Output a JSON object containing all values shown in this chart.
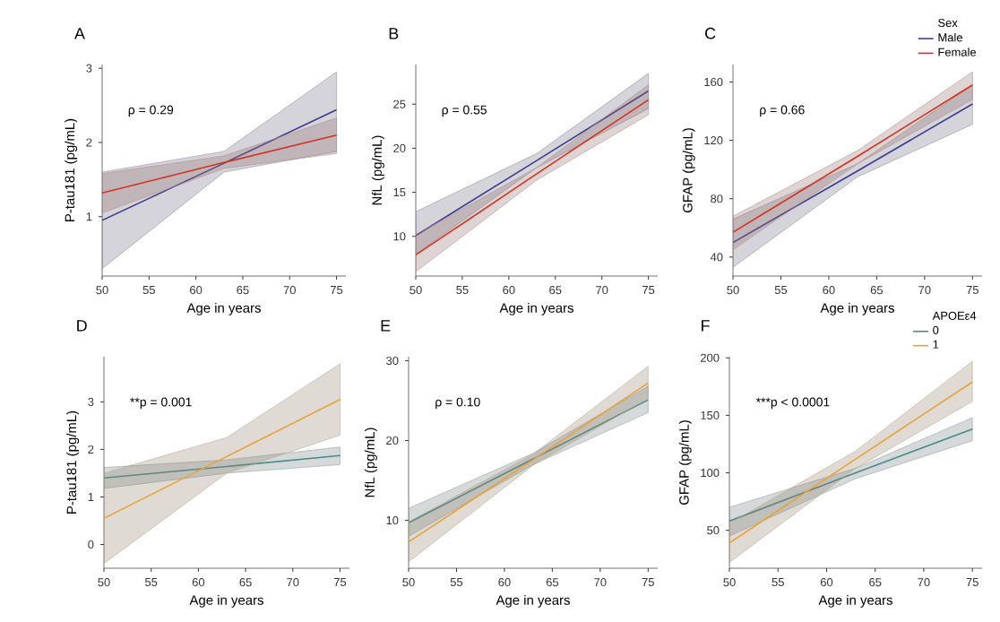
{
  "chart_data": [
    {
      "type": "line",
      "title": "A",
      "xlabel": "Age in years",
      "ylabel": "P-tau181 (pg/mL)",
      "x": [
        50,
        63,
        75
      ],
      "xlim": [
        50,
        76
      ],
      "xticks": [
        50,
        55,
        60,
        65,
        70,
        75
      ],
      "ylim": [
        0.2,
        3.05
      ],
      "yticks": [
        1,
        2,
        3
      ],
      "annotations": [
        "ρ = 0.29"
      ],
      "series": [
        {
          "color": "#3b3d8f",
          "values": [
            0.95,
            1.72,
            2.44
          ],
          "lower": [
            0.3,
            1.6,
            1.88
          ],
          "upper": [
            1.6,
            1.88,
            2.95
          ]
        },
        {
          "color": "#d7301f",
          "values": [
            1.32,
            1.73,
            2.1
          ],
          "lower": [
            1.05,
            1.65,
            1.85
          ],
          "upper": [
            1.58,
            1.82,
            2.33
          ]
        }
      ]
    },
    {
      "type": "line",
      "title": "B",
      "xlabel": "Age in years",
      "ylabel": "NfL (pg/mL)",
      "x": [
        50,
        63,
        75
      ],
      "xlim": [
        50,
        76
      ],
      "xticks": [
        50,
        55,
        60,
        65,
        70,
        75
      ],
      "ylim": [
        5.5,
        29.5
      ],
      "yticks": [
        10,
        15,
        20,
        25
      ],
      "annotations": [
        "ρ = 0.55"
      ],
      "series": [
        {
          "color": "#3b3d8f",
          "values": [
            10.1,
            18.6,
            26.5
          ],
          "lower": [
            8.0,
            17.8,
            24.5
          ],
          "upper": [
            12.8,
            19.4,
            28.5
          ]
        },
        {
          "color": "#d7301f",
          "values": [
            7.9,
            17.1,
            25.5
          ],
          "lower": [
            6.0,
            16.4,
            23.8
          ],
          "upper": [
            10.2,
            17.8,
            27.2
          ]
        }
      ]
    },
    {
      "type": "line",
      "title": "C",
      "xlabel": "Age in years",
      "ylabel": "GFAP (pg/mL)",
      "x": [
        50,
        63,
        75
      ],
      "xlim": [
        50,
        76
      ],
      "xticks": [
        50,
        55,
        60,
        65,
        70,
        75
      ],
      "ylim": [
        27,
        172
      ],
      "yticks": [
        40,
        80,
        120,
        160
      ],
      "annotations": [
        "ρ = 0.66"
      ],
      "legend": "top right",
      "legend_title": "Sex",
      "series": [
        {
          "name": "Male",
          "color": "#3b3d8f",
          "values": [
            50,
            99,
            145
          ],
          "lower": [
            33,
            95,
            131
          ],
          "upper": [
            66,
            104,
            158
          ]
        },
        {
          "name": "Female",
          "color": "#d7301f",
          "values": [
            57,
            109,
            158
          ],
          "lower": [
            45,
            104,
            148
          ],
          "upper": [
            68,
            113,
            167
          ]
        }
      ]
    },
    {
      "type": "line",
      "title": "D",
      "xlabel": "Age in years",
      "ylabel": "P-tau181 (pg/mL)",
      "x": [
        50,
        63,
        75
      ],
      "xlim": [
        50,
        76
      ],
      "xticks": [
        50,
        55,
        60,
        65,
        70,
        75
      ],
      "ylim": [
        -0.5,
        3.95
      ],
      "yticks": [
        0,
        1,
        2,
        3
      ],
      "annotations": [
        "**p = 0.001"
      ],
      "series": [
        {
          "color": "#4a8a88",
          "values": [
            1.4,
            1.64,
            1.87
          ],
          "lower": [
            1.18,
            1.5,
            1.68
          ],
          "upper": [
            1.62,
            1.78,
            2.05
          ]
        },
        {
          "color": "#e9a23b",
          "values": [
            0.55,
            1.85,
            3.05
          ],
          "lower": [
            -0.4,
            1.5,
            2.3
          ],
          "upper": [
            1.5,
            2.25,
            3.8
          ]
        }
      ]
    },
    {
      "type": "line",
      "title": "E",
      "xlabel": "Age in years",
      "ylabel": "NfL (pg/mL)",
      "x": [
        50,
        63,
        75
      ],
      "xlim": [
        50,
        76
      ],
      "xticks": [
        50,
        55,
        60,
        65,
        70,
        75
      ],
      "ylim": [
        4,
        30.5
      ],
      "yticks": [
        10,
        20,
        30
      ],
      "annotations": [
        "ρ = 0.10"
      ],
      "series": [
        {
          "color": "#4a8a88",
          "values": [
            9.7,
            17.7,
            25.1
          ],
          "lower": [
            8.0,
            17.0,
            23.5
          ],
          "upper": [
            11.5,
            18.4,
            26.8
          ]
        },
        {
          "color": "#e9a23b",
          "values": [
            7.3,
            17.6,
            27.2
          ],
          "lower": [
            4.8,
            16.9,
            25.3
          ],
          "upper": [
            9.8,
            18.3,
            29.3
          ]
        }
      ]
    },
    {
      "type": "line",
      "title": "F",
      "xlabel": "Age in years",
      "ylabel": "GFAP (pg/mL)",
      "x": [
        50,
        63,
        75
      ],
      "xlim": [
        50,
        76
      ],
      "xticks": [
        50,
        55,
        60,
        65,
        70,
        75
      ],
      "ylim": [
        17,
        201
      ],
      "yticks": [
        50,
        100,
        150,
        200
      ],
      "annotations": [
        "***p < 0.0001"
      ],
      "legend": "top right",
      "legend_title": "APOEε4",
      "series": [
        {
          "name": "0",
          "color": "#4a8a88",
          "values": [
            58,
            100,
            138
          ],
          "lower": [
            45,
            95,
            128
          ],
          "upper": [
            70,
            104,
            148
          ]
        },
        {
          "name": "1",
          "color": "#e9a23b",
          "values": [
            39,
            112,
            179
          ],
          "lower": [
            22,
            104,
            162
          ],
          "upper": [
            56,
            119,
            197
          ]
        }
      ]
    }
  ]
}
